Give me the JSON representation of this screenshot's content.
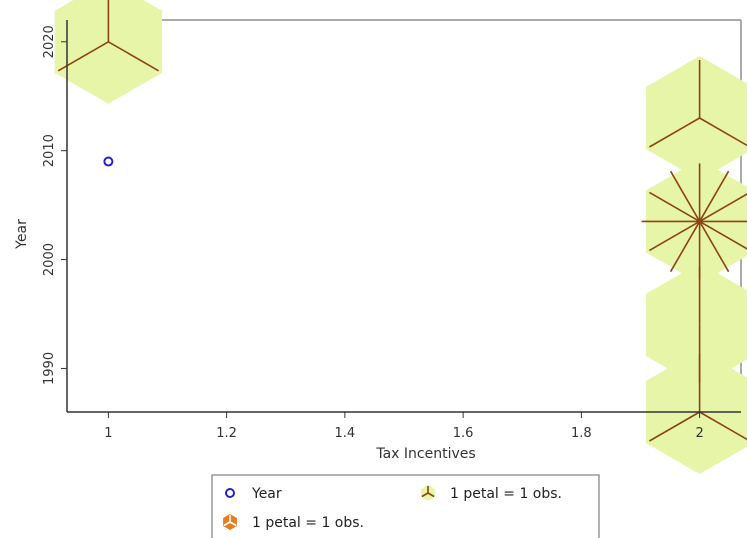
{
  "chart_data": {
    "type": "scatter",
    "title": "",
    "xlabel": "Tax Incentives",
    "ylabel": "Year",
    "xlim": [
      0.93,
      2.07
    ],
    "ylim": [
      1986,
      2022
    ],
    "x_ticks": [
      1,
      1.2,
      1.4,
      1.6,
      1.8,
      2
    ],
    "x_tick_labels": [
      "1",
      "1.2",
      "1.4",
      "1.6",
      "1.8",
      "2"
    ],
    "y_ticks": [
      1990,
      2000,
      2010,
      2020
    ],
    "y_tick_labels": [
      "1990",
      "2000",
      "2010",
      "2020"
    ],
    "grid": false,
    "colors": {
      "point": "#2222cc",
      "hex_fill": "#e6f5a8",
      "petal": "#8b4513",
      "legend_orange": "#e87d1e",
      "frame": "#aaaaaa",
      "axis": "#333333"
    },
    "points": [
      {
        "x": 1,
        "y": 2009
      }
    ],
    "sunflowers": [
      {
        "x": 1,
        "y": 2020,
        "petals": 3
      },
      {
        "x": 2,
        "y": 2013,
        "petals": 3
      },
      {
        "x": 2,
        "y": 2003.5,
        "petals": 12
      },
      {
        "x": 2,
        "y": 1994,
        "petals": 2
      },
      {
        "x": 2,
        "y": 1986,
        "petals": 3
      }
    ],
    "legend": {
      "position": "bottom",
      "entries": [
        {
          "label": "Year",
          "marker": "circle"
        },
        {
          "label": "1 petal = 1 obs.",
          "marker": "sunflower-light"
        },
        {
          "label": "1 petal = 1 obs.",
          "marker": "sunflower-orange"
        }
      ]
    }
  }
}
